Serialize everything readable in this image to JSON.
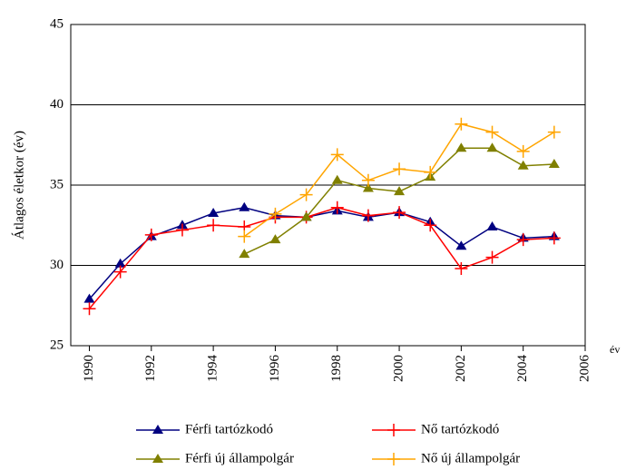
{
  "chart_data": {
    "type": "line",
    "y_label": "Átlagos életkor (év)",
    "x_label": "év",
    "x": [
      1990,
      1991,
      1992,
      1993,
      1994,
      1995,
      1996,
      1997,
      1998,
      1999,
      2000,
      2001,
      2002,
      2003,
      2004,
      2005
    ],
    "series": [
      {
        "name": "Férfi tartózkodó",
        "color": "#000080",
        "marker": "triangle",
        "values": [
          27.9,
          30.1,
          31.8,
          32.5,
          33.25,
          33.6,
          33.1,
          33.0,
          33.4,
          33.0,
          33.3,
          32.7,
          31.2,
          32.4,
          31.7,
          31.8
        ]
      },
      {
        "name": "Nő tartózkodó",
        "color": "#ff0000",
        "marker": "plus",
        "values": [
          27.3,
          29.6,
          31.9,
          32.2,
          32.5,
          32.4,
          33.0,
          33.0,
          33.6,
          33.1,
          33.3,
          32.5,
          29.8,
          30.5,
          31.6,
          31.7
        ]
      },
      {
        "name": "Férfi új állampolgár",
        "color": "#808000",
        "marker": "triangle",
        "values": [
          null,
          null,
          null,
          null,
          null,
          30.7,
          31.6,
          33.0,
          35.3,
          34.8,
          34.6,
          35.5,
          37.3,
          37.3,
          36.2,
          36.3
        ]
      },
      {
        "name": "Nő új állampolgár",
        "color": "#ffa500",
        "marker": "plus",
        "values": [
          null,
          null,
          null,
          null,
          null,
          31.8,
          33.2,
          34.4,
          36.9,
          35.3,
          36.0,
          35.8,
          38.8,
          38.3,
          37.1,
          38.3
        ]
      }
    ],
    "xlim": [
      1989.4,
      2006
    ],
    "xticks": [
      1990,
      1992,
      1994,
      1996,
      1998,
      2000,
      2002,
      2004,
      2006
    ],
    "ylim": [
      25,
      45
    ],
    "yticks": [
      25,
      30,
      35,
      40,
      45
    ],
    "grid": true
  }
}
